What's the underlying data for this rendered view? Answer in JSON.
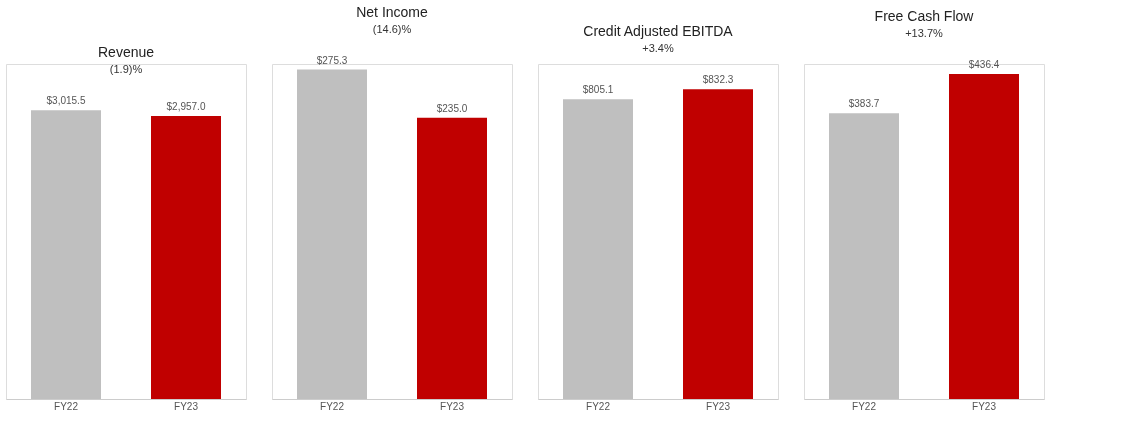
{
  "chart_data": [
    {
      "type": "bar",
      "title": "Revenue",
      "categories": [
        "FY22",
        "FY23"
      ],
      "values": [
        3015.5,
        2957.0
      ],
      "value_labels": [
        "$3,015.5",
        "$2,957.0"
      ],
      "colors": [
        "#bfbfbf",
        "#c00000"
      ],
      "annotations": [
        "(1.9)%"
      ]
    },
    {
      "type": "bar",
      "title": "Net Income",
      "categories": [
        "FY22",
        "FY23"
      ],
      "values": [
        275.3,
        235.0
      ],
      "value_labels": [
        "$275.3",
        "$235.0"
      ],
      "colors": [
        "#bfbfbf",
        "#c00000"
      ],
      "annotations": [
        "(14.6)%"
      ]
    },
    {
      "type": "bar",
      "title": "Credit Adjusted EBITDA",
      "categories": [
        "FY22",
        "FY23"
      ],
      "values": [
        805.1,
        832.3
      ],
      "value_labels": [
        "$805.1",
        "$832.3"
      ],
      "colors": [
        "#bfbfbf",
        "#c00000"
      ],
      "annotations": [
        "+3.4%"
      ]
    },
    {
      "type": "bar",
      "title": "Free Cash Flow",
      "categories": [
        "FY22",
        "FY23"
      ],
      "values": [
        383.7,
        436.4
      ],
      "value_labels": [
        "$383.7",
        "$436.4"
      ],
      "colors": [
        "#bfbfbf",
        "#c00000"
      ],
      "annotations": [
        "+13.7%"
      ]
    }
  ]
}
